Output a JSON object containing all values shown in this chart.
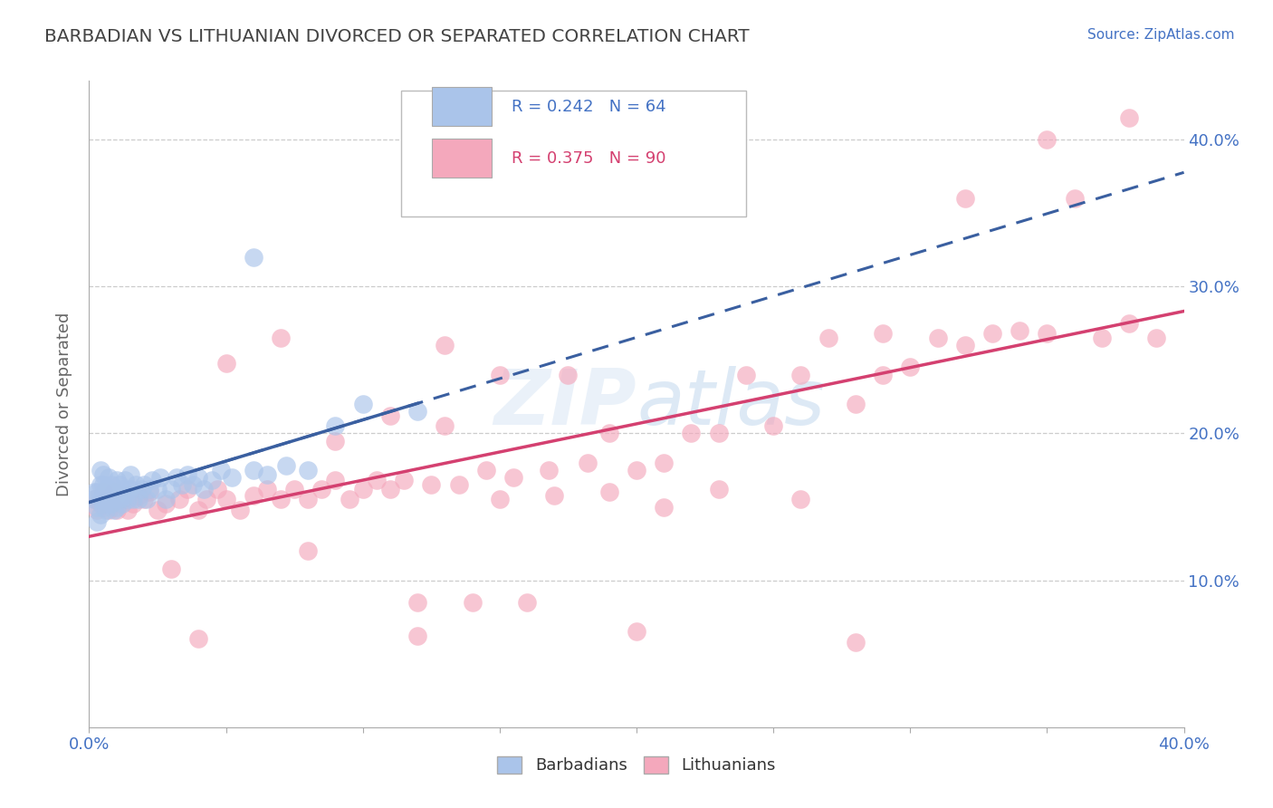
{
  "title": "BARBADIAN VS LITHUANIAN DIVORCED OR SEPARATED CORRELATION CHART",
  "source_text": "Source: ZipAtlas.com",
  "ylabel": "Divorced or Separated",
  "barbadian_R": 0.242,
  "barbadian_N": 64,
  "lithuanian_R": 0.375,
  "lithuanian_N": 90,
  "barbadian_color": "#aac4ea",
  "lithuanian_color": "#f4a8bc",
  "barbadian_line_color": "#3a5fa0",
  "lithuanian_line_color": "#d44070",
  "background_color": "#ffffff",
  "grid_color": "#cccccc",
  "title_color": "#444444",
  "watermark_color": "#c8d8f0",
  "xlim": [
    0.0,
    0.4
  ],
  "ylim": [
    0.0,
    0.44
  ],
  "ytick_vals": [
    0.1,
    0.2,
    0.3,
    0.4
  ],
  "ytick_labels": [
    "10.0%",
    "20.0%",
    "30.0%",
    "40.0%"
  ],
  "xtick_vals": [
    0.0,
    0.05,
    0.1,
    0.15,
    0.2,
    0.25,
    0.3,
    0.35,
    0.4
  ],
  "barbadian_x": [
    0.002,
    0.002,
    0.003,
    0.003,
    0.003,
    0.004,
    0.004,
    0.004,
    0.004,
    0.005,
    0.005,
    0.005,
    0.005,
    0.006,
    0.006,
    0.006,
    0.007,
    0.007,
    0.007,
    0.008,
    0.008,
    0.009,
    0.009,
    0.01,
    0.01,
    0.01,
    0.011,
    0.011,
    0.012,
    0.012,
    0.013,
    0.013,
    0.014,
    0.015,
    0.015,
    0.016,
    0.017,
    0.018,
    0.019,
    0.02,
    0.021,
    0.022,
    0.023,
    0.025,
    0.026,
    0.028,
    0.03,
    0.032,
    0.034,
    0.036,
    0.038,
    0.04,
    0.042,
    0.045,
    0.048,
    0.052,
    0.06,
    0.065,
    0.072,
    0.08,
    0.09,
    0.1,
    0.12,
    0.06
  ],
  "barbadian_y": [
    0.155,
    0.16,
    0.14,
    0.15,
    0.16,
    0.145,
    0.155,
    0.165,
    0.175,
    0.15,
    0.158,
    0.165,
    0.172,
    0.148,
    0.155,
    0.162,
    0.155,
    0.162,
    0.17,
    0.152,
    0.165,
    0.148,
    0.16,
    0.15,
    0.158,
    0.168,
    0.155,
    0.165,
    0.152,
    0.162,
    0.158,
    0.168,
    0.155,
    0.162,
    0.172,
    0.155,
    0.165,
    0.155,
    0.162,
    0.165,
    0.155,
    0.162,
    0.168,
    0.162,
    0.17,
    0.155,
    0.162,
    0.17,
    0.165,
    0.172,
    0.165,
    0.17,
    0.162,
    0.168,
    0.175,
    0.17,
    0.175,
    0.172,
    0.178,
    0.175,
    0.205,
    0.22,
    0.215,
    0.32
  ],
  "lithuanian_x": [
    0.002,
    0.003,
    0.004,
    0.005,
    0.006,
    0.007,
    0.008,
    0.009,
    0.01,
    0.012,
    0.014,
    0.016,
    0.018,
    0.02,
    0.022,
    0.025,
    0.028,
    0.03,
    0.033,
    0.036,
    0.04,
    0.043,
    0.047,
    0.05,
    0.055,
    0.06,
    0.065,
    0.07,
    0.075,
    0.08,
    0.085,
    0.09,
    0.095,
    0.1,
    0.105,
    0.11,
    0.115,
    0.12,
    0.125,
    0.13,
    0.135,
    0.14,
    0.145,
    0.15,
    0.155,
    0.16,
    0.168,
    0.175,
    0.182,
    0.19,
    0.2,
    0.21,
    0.22,
    0.23,
    0.24,
    0.25,
    0.26,
    0.27,
    0.28,
    0.29,
    0.3,
    0.31,
    0.32,
    0.33,
    0.34,
    0.35,
    0.36,
    0.37,
    0.38,
    0.39,
    0.05,
    0.07,
    0.09,
    0.11,
    0.13,
    0.15,
    0.17,
    0.19,
    0.21,
    0.23,
    0.26,
    0.29,
    0.32,
    0.35,
    0.38,
    0.04,
    0.08,
    0.12,
    0.2,
    0.28
  ],
  "lithuanian_y": [
    0.155,
    0.148,
    0.152,
    0.16,
    0.155,
    0.148,
    0.152,
    0.16,
    0.148,
    0.155,
    0.148,
    0.152,
    0.158,
    0.155,
    0.16,
    0.148,
    0.152,
    0.108,
    0.155,
    0.162,
    0.148,
    0.155,
    0.162,
    0.155,
    0.148,
    0.158,
    0.162,
    0.155,
    0.162,
    0.155,
    0.162,
    0.168,
    0.155,
    0.162,
    0.168,
    0.162,
    0.168,
    0.085,
    0.165,
    0.205,
    0.165,
    0.085,
    0.175,
    0.24,
    0.17,
    0.085,
    0.175,
    0.24,
    0.18,
    0.2,
    0.175,
    0.18,
    0.2,
    0.2,
    0.24,
    0.205,
    0.24,
    0.265,
    0.22,
    0.268,
    0.245,
    0.265,
    0.26,
    0.268,
    0.27,
    0.268,
    0.36,
    0.265,
    0.275,
    0.265,
    0.248,
    0.265,
    0.195,
    0.212,
    0.26,
    0.155,
    0.158,
    0.16,
    0.15,
    0.162,
    0.155,
    0.24,
    0.36,
    0.4,
    0.415,
    0.06,
    0.12,
    0.062,
    0.065,
    0.058
  ]
}
